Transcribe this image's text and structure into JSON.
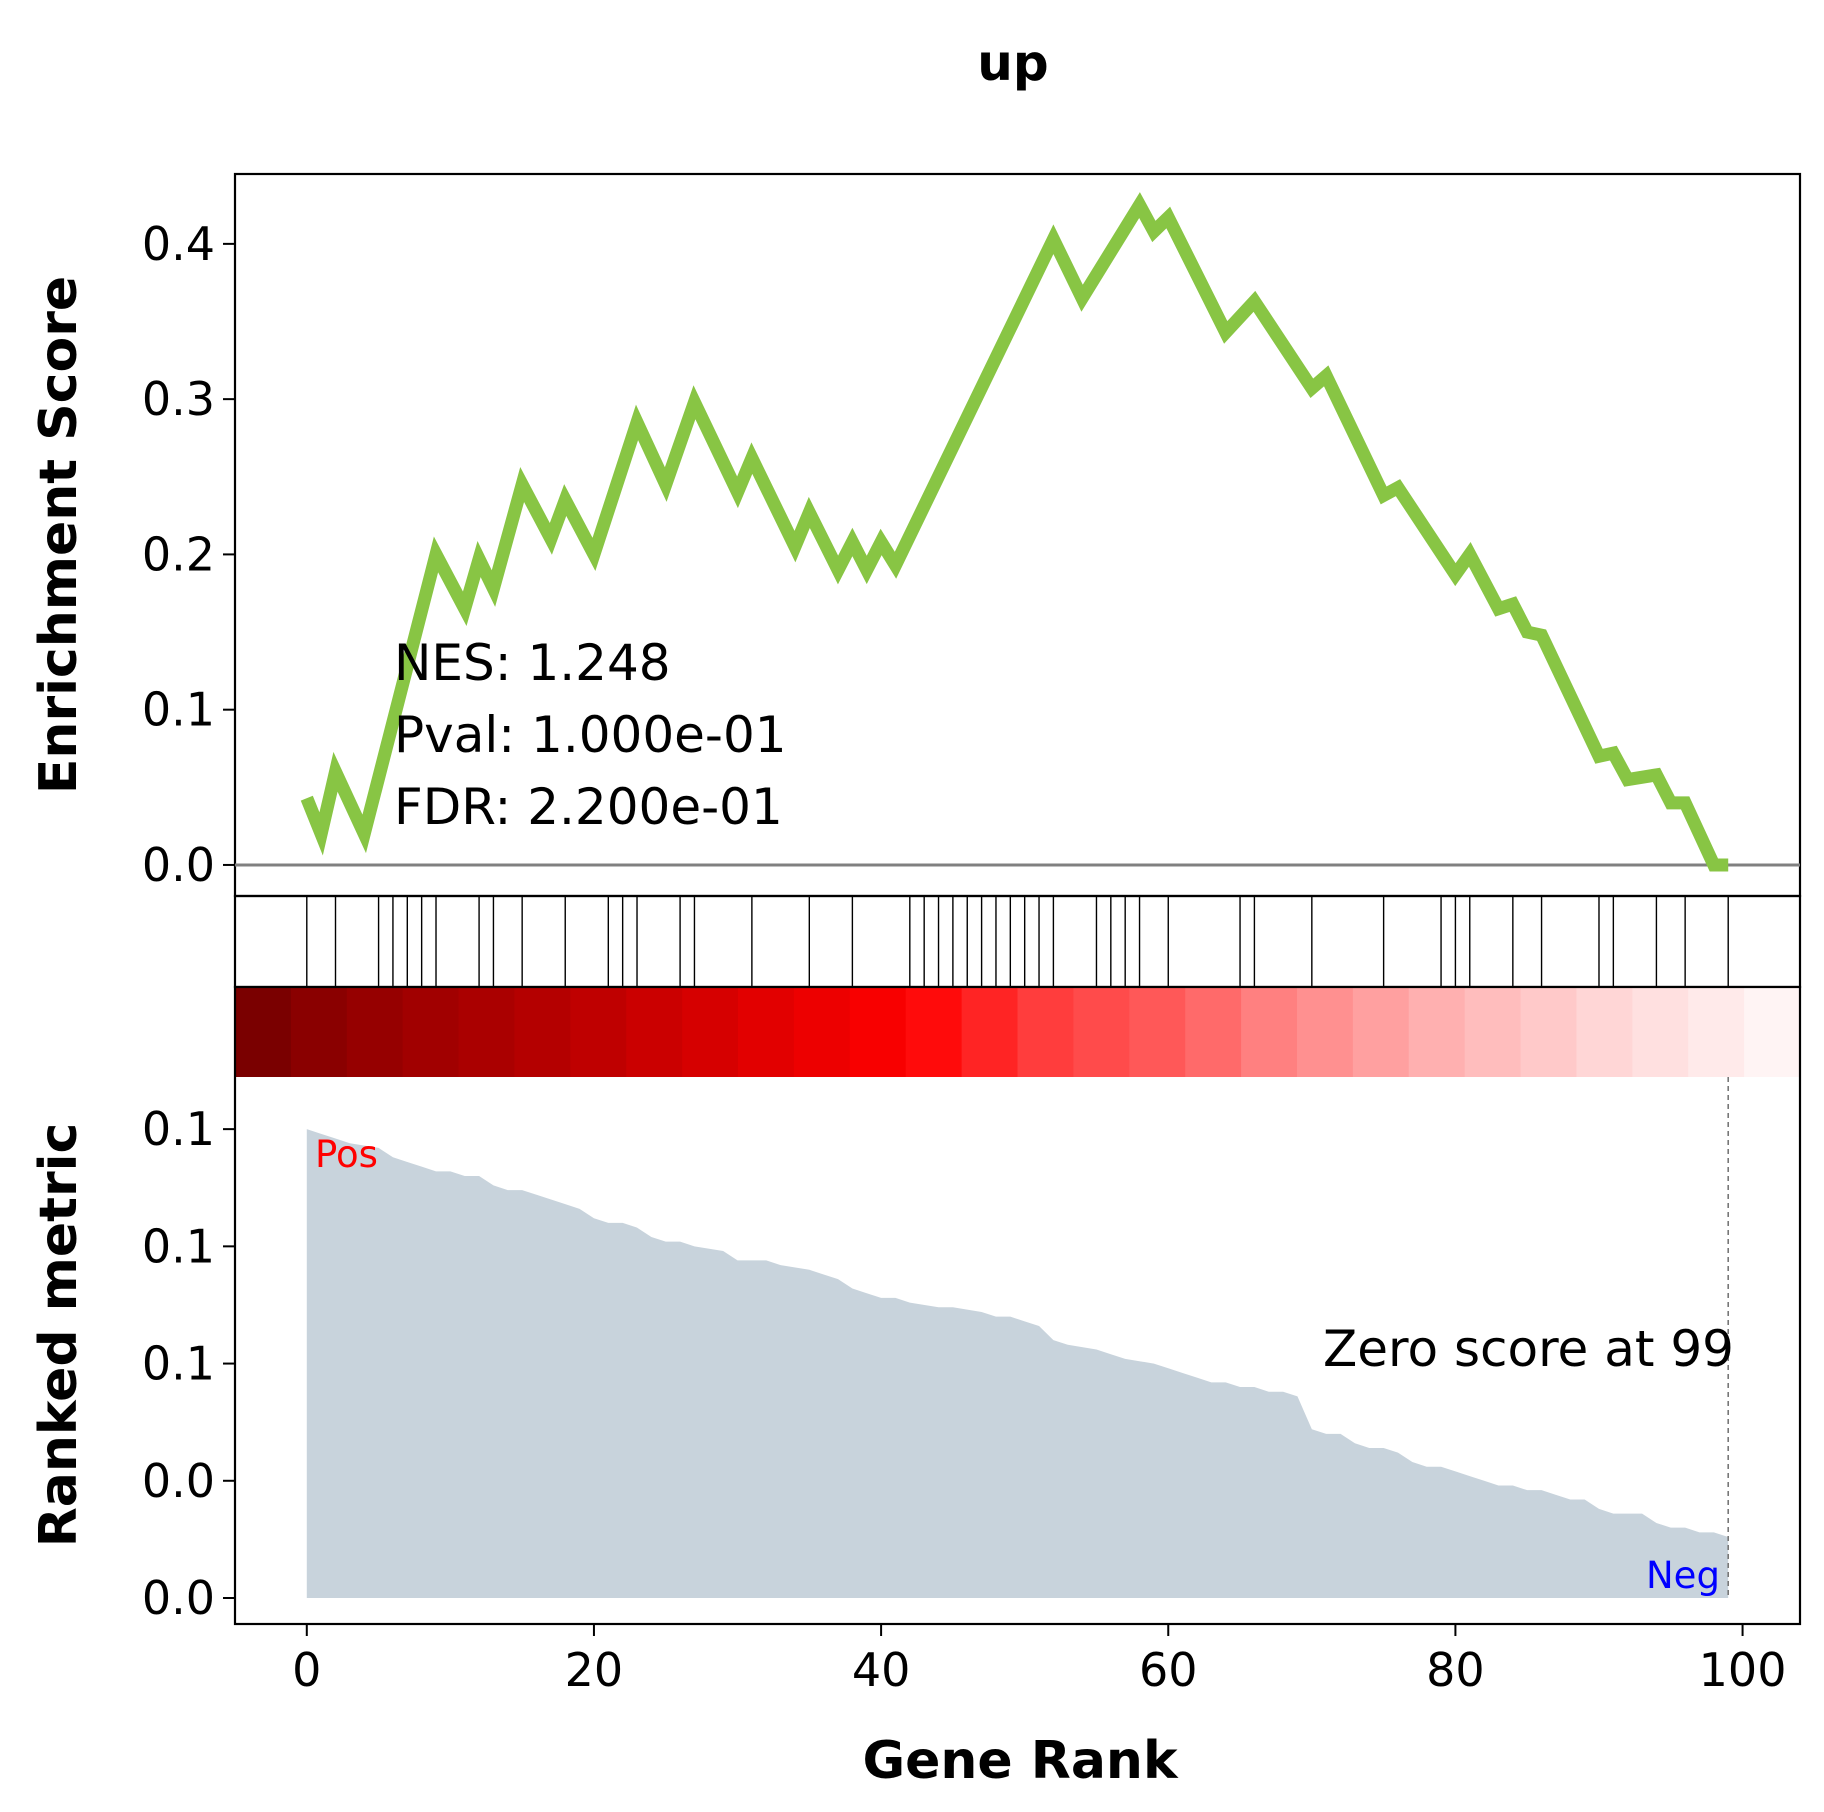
{
  "chart_data": {
    "type": "line",
    "title": "up",
    "xlabel": "Gene Rank",
    "ylabel_top": "Enrichment Score",
    "ylabel_bottom": "Ranked metric",
    "xlim": [
      -5,
      104
    ],
    "xticks": [
      0,
      20,
      40,
      60,
      80,
      100
    ],
    "es_ylim": [
      -0.02,
      0.445
    ],
    "es_yticks": [
      {
        "value": 0.0,
        "label": "0.0"
      },
      {
        "value": 0.1,
        "label": "0.1"
      },
      {
        "value": 0.2,
        "label": "0.2"
      },
      {
        "value": 0.3,
        "label": "0.3"
      },
      {
        "value": 0.4,
        "label": "0.4"
      }
    ],
    "es_line_color": "#88c544",
    "es_curve": {
      "x": [
        0,
        1,
        2,
        4,
        9,
        11,
        12,
        13,
        15,
        17,
        18,
        20,
        23,
        25,
        27,
        30,
        31,
        34,
        35,
        37,
        38,
        39,
        40,
        41,
        52,
        54,
        58,
        59,
        60,
        64,
        66,
        70,
        71,
        75,
        76,
        80,
        81,
        83,
        84,
        85,
        86,
        90,
        91,
        92,
        94,
        95,
        96,
        98,
        99
      ],
      "y": [
        0.043,
        0.02,
        0.06,
        0.02,
        0.2,
        0.165,
        0.197,
        0.178,
        0.245,
        0.21,
        0.235,
        0.2,
        0.285,
        0.245,
        0.298,
        0.24,
        0.262,
        0.205,
        0.227,
        0.19,
        0.208,
        0.19,
        0.208,
        0.193,
        0.403,
        0.365,
        0.425,
        0.408,
        0.417,
        0.343,
        0.363,
        0.307,
        0.315,
        0.238,
        0.243,
        0.187,
        0.2,
        0.165,
        0.168,
        0.15,
        0.148,
        0.07,
        0.072,
        0.055,
        0.058,
        0.04,
        0.04,
        0.0,
        0.0
      ]
    },
    "stats": {
      "nes": "NES: 1.248",
      "pval": "Pval: 1.000e-01",
      "fdr": "FDR: 2.200e-01"
    },
    "hits": [
      0,
      2,
      5,
      6,
      7,
      8,
      9,
      12,
      13,
      15,
      18,
      21,
      22,
      23,
      26,
      27,
      31,
      35,
      38,
      42,
      43,
      44,
      45,
      46,
      47,
      48,
      49,
      50,
      51,
      52,
      55,
      56,
      57,
      58,
      60,
      65,
      66,
      70,
      75,
      79,
      80,
      81,
      84,
      86,
      90,
      91,
      94,
      96,
      99
    ],
    "metric_ylim": [
      0,
      0.106
    ],
    "metric_yticks": [
      {
        "value": 0.0,
        "label": "0.0"
      },
      {
        "value": 0.025,
        "label": "0.0"
      },
      {
        "value": 0.05,
        "label": "0.1"
      },
      {
        "value": 0.075,
        "label": "0.1"
      },
      {
        "value": 0.1,
        "label": "0.1"
      }
    ],
    "metric_fill_color": "#c8d3dc",
    "metric_curve": {
      "x": [
        0,
        1,
        2,
        3,
        5,
        6,
        7,
        8,
        9,
        10,
        11,
        12,
        13,
        14,
        15,
        16,
        18,
        19,
        20,
        21,
        22,
        23,
        24,
        25,
        26,
        27,
        29,
        30,
        32,
        33,
        35,
        36,
        37,
        38,
        39,
        40,
        41,
        42,
        44,
        45,
        47,
        48,
        49,
        50,
        51,
        52,
        53,
        55,
        56,
        57,
        59,
        60,
        61,
        62,
        63,
        64,
        65,
        66,
        67,
        68,
        69,
        70,
        71,
        72,
        73,
        74,
        75,
        76,
        77,
        78,
        79,
        80,
        81,
        82,
        83,
        84,
        85,
        86,
        87,
        88,
        89,
        90,
        91,
        92,
        93,
        94,
        95,
        96,
        97,
        98,
        99
      ],
      "y": [
        0.1,
        0.099,
        0.098,
        0.097,
        0.096,
        0.094,
        0.093,
        0.092,
        0.091,
        0.091,
        0.09,
        0.09,
        0.088,
        0.087,
        0.087,
        0.086,
        0.084,
        0.083,
        0.081,
        0.08,
        0.08,
        0.079,
        0.077,
        0.076,
        0.076,
        0.075,
        0.074,
        0.072,
        0.072,
        0.071,
        0.07,
        0.069,
        0.068,
        0.066,
        0.065,
        0.064,
        0.064,
        0.063,
        0.062,
        0.062,
        0.061,
        0.06,
        0.06,
        0.059,
        0.058,
        0.055,
        0.054,
        0.053,
        0.052,
        0.051,
        0.05,
        0.049,
        0.048,
        0.047,
        0.046,
        0.046,
        0.045,
        0.045,
        0.044,
        0.044,
        0.043,
        0.036,
        0.035,
        0.035,
        0.033,
        0.032,
        0.032,
        0.031,
        0.029,
        0.028,
        0.028,
        0.027,
        0.026,
        0.025,
        0.024,
        0.024,
        0.023,
        0.023,
        0.022,
        0.021,
        0.021,
        0.019,
        0.018,
        0.018,
        0.018,
        0.016,
        0.015,
        0.015,
        0.014,
        0.014,
        0.013
      ]
    },
    "pos_label": {
      "text": "Pos",
      "color": "#ff0000"
    },
    "neg_label": {
      "text": "Neg",
      "color": "#0000ff"
    },
    "zero_score_text": "Zero score at 99",
    "zero_score_rank": 99,
    "colorbar_colors": [
      "#7a0000",
      "#8a0000",
      "#960000",
      "#a10000",
      "#aa0000",
      "#b40000",
      "#bf0000",
      "#cb0000",
      "#d60000",
      "#e20000",
      "#ed0000",
      "#f80000",
      "#ff0b0b",
      "#ff2424",
      "#ff3d3d",
      "#ff4b4b",
      "#ff5858",
      "#ff6a6a",
      "#ff8080",
      "#ff9090",
      "#ffa0a0",
      "#ffb0b0",
      "#ffbdbd",
      "#ffc9c9",
      "#ffd6d6",
      "#ffe0e0",
      "#ffeaea",
      "#fff4f4"
    ]
  }
}
